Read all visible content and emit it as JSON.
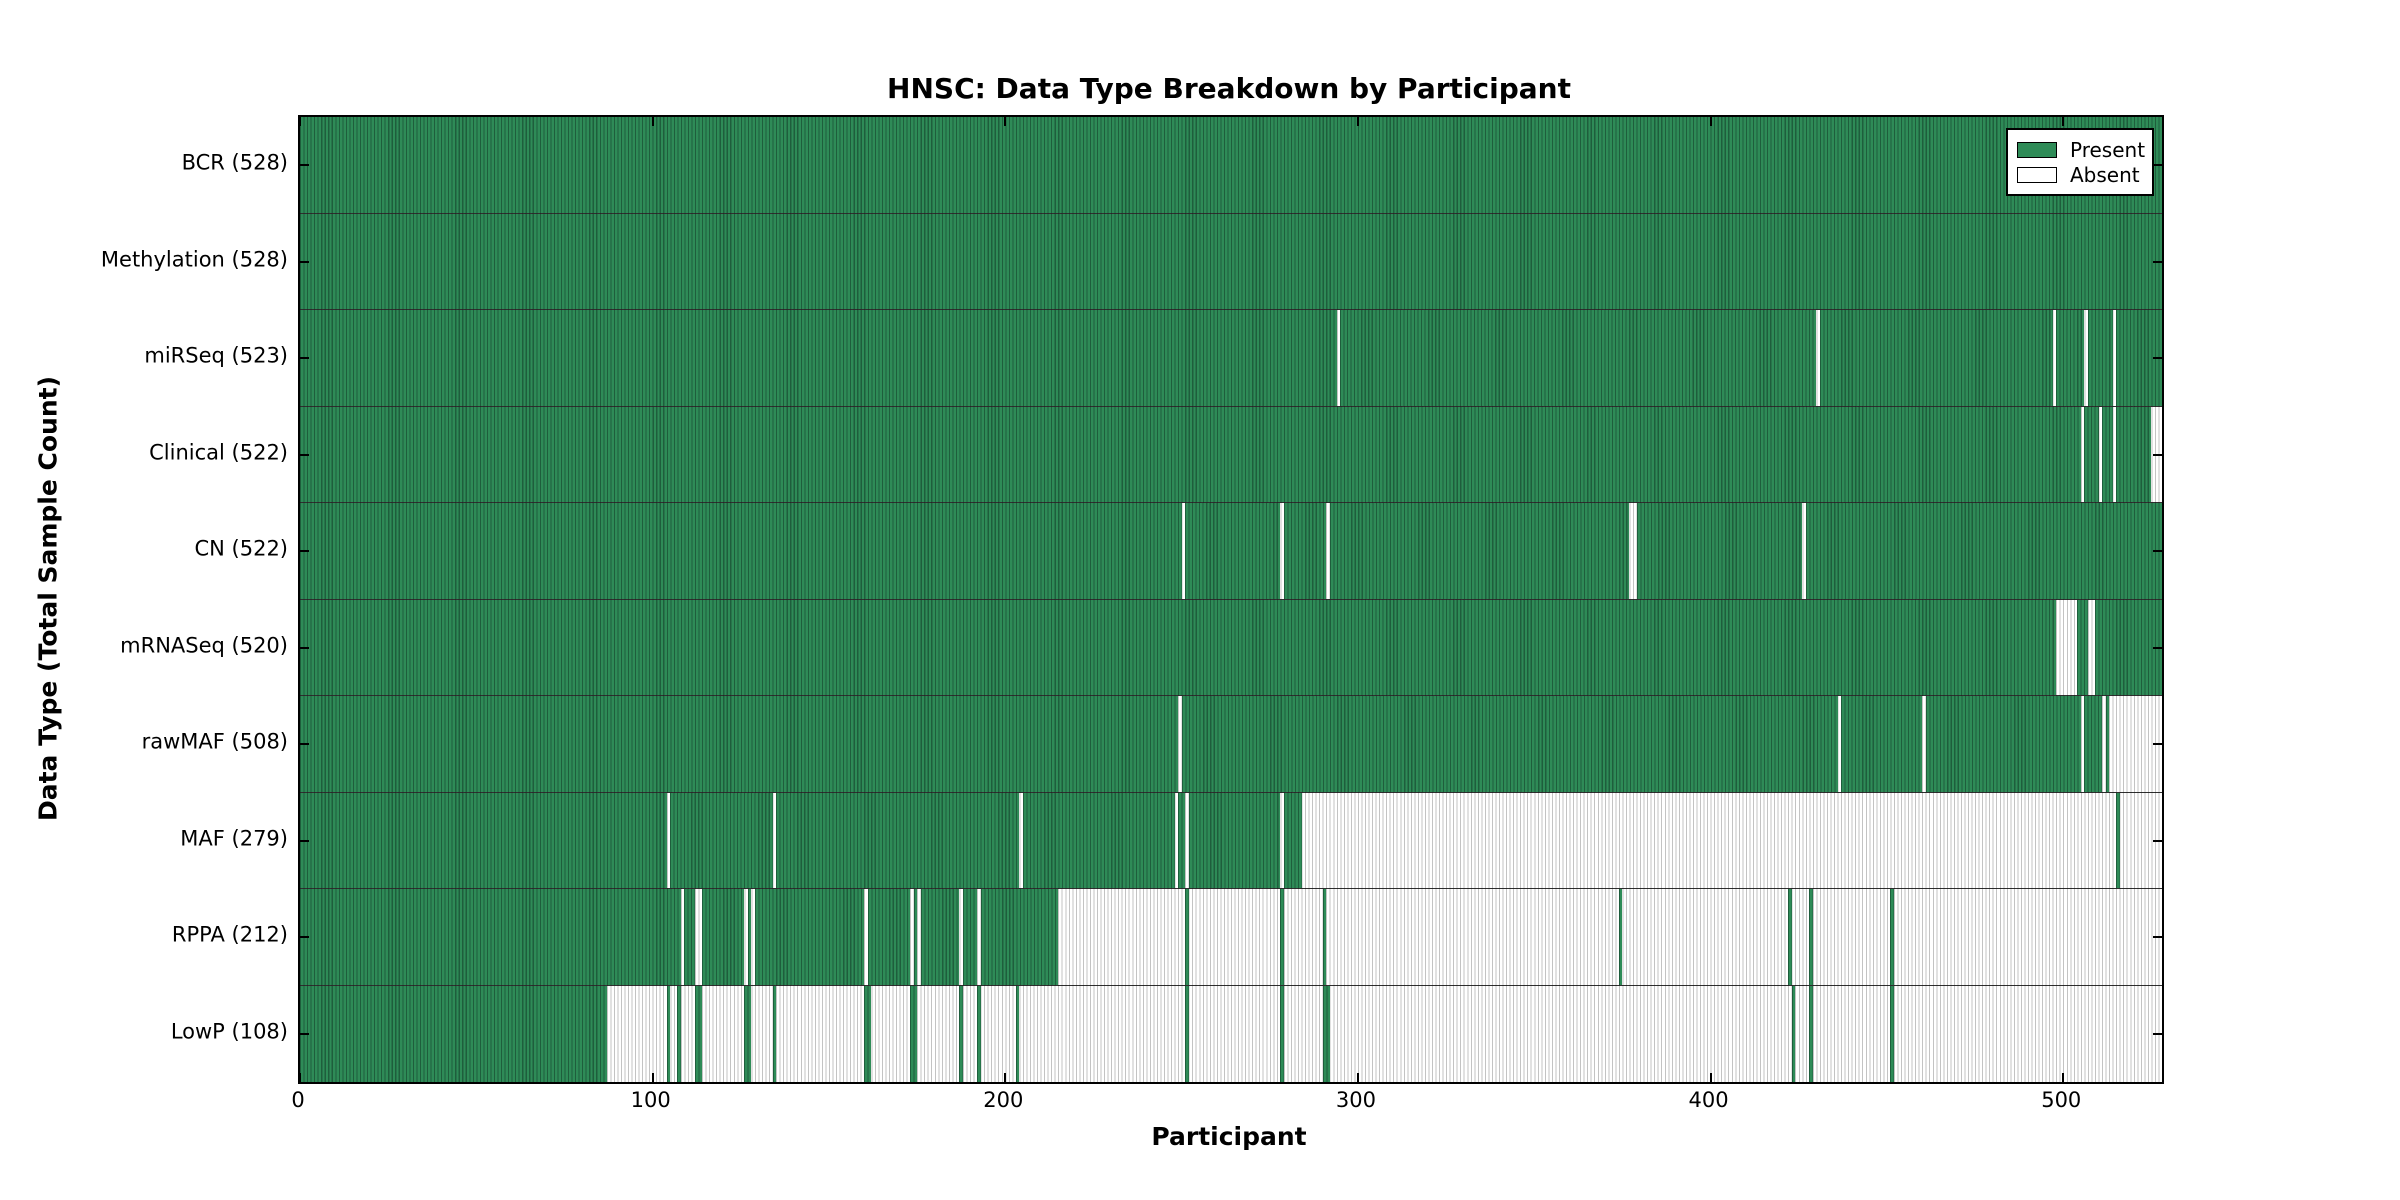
{
  "figure": {
    "title": "HNSC: Data Type Breakdown by Participant",
    "xlabel": "Participant",
    "ylabel": "Data Type (Total Sample Count)"
  },
  "legend": {
    "items": [
      {
        "label": "Present",
        "color": "#2e8b57"
      },
      {
        "label": "Absent",
        "color": "#ffffff"
      }
    ]
  },
  "chart_data": {
    "type": "heatmap",
    "title": "HNSC: Data Type Breakdown by Participant",
    "xlabel": "Participant",
    "ylabel": "Data Type (Total Sample Count)",
    "xlim": [
      0,
      528
    ],
    "x_ticks": [
      0,
      100,
      200,
      300,
      400,
      500
    ],
    "n_participants": 528,
    "grid": false,
    "legend_position": "upper right",
    "colors": {
      "present_fill": "#2e8b57",
      "present_edge": "#1e5e3c",
      "absent_fill": "#ffffff",
      "absent_edge": "#c3c3c3",
      "separator": "#0a0a0a"
    },
    "value_legend": {
      "present": "Present",
      "absent": "Absent"
    },
    "rows": [
      {
        "name": "BCR",
        "label": "BCR (528)",
        "count": 528,
        "present_ranges": [
          [
            0,
            527
          ]
        ]
      },
      {
        "name": "Methylation",
        "label": "Methylation (528)",
        "count": 528,
        "present_ranges": [
          [
            0,
            527
          ]
        ]
      },
      {
        "name": "miRSeq",
        "label": "miRSeq (523)",
        "count": 523,
        "present_ranges": [
          [
            0,
            293
          ],
          [
            295,
            429
          ],
          [
            431,
            496
          ],
          [
            498,
            505
          ],
          [
            507,
            513
          ],
          [
            515,
            527
          ]
        ]
      },
      {
        "name": "Clinical",
        "label": "Clinical (522)",
        "count": 522,
        "present_ranges": [
          [
            0,
            504
          ],
          [
            506,
            509
          ],
          [
            511,
            513
          ],
          [
            515,
            524
          ]
        ]
      },
      {
        "name": "CN",
        "label": "CN (522)",
        "count": 522,
        "present_ranges": [
          [
            0,
            249
          ],
          [
            251,
            277
          ],
          [
            279,
            290
          ],
          [
            292,
            376
          ],
          [
            379,
            425
          ],
          [
            427,
            527
          ]
        ]
      },
      {
        "name": "mRNASeq",
        "label": "mRNASeq (520)",
        "count": 520,
        "present_ranges": [
          [
            0,
            497
          ],
          [
            504,
            506
          ],
          [
            509,
            527
          ]
        ]
      },
      {
        "name": "rawMAF",
        "label": "rawMAF (508)",
        "count": 508,
        "present_ranges": [
          [
            0,
            248
          ],
          [
            250,
            435
          ],
          [
            437,
            459
          ],
          [
            461,
            504
          ],
          [
            506,
            510
          ],
          [
            512,
            512
          ]
        ]
      },
      {
        "name": "MAF",
        "label": "MAF (279)",
        "count": 279,
        "present_ranges": [
          [
            0,
            103
          ],
          [
            105,
            133
          ],
          [
            135,
            203
          ],
          [
            205,
            247
          ],
          [
            249,
            250
          ],
          [
            252,
            277
          ],
          [
            279,
            283
          ],
          [
            515,
            515
          ]
        ]
      },
      {
        "name": "RPPA",
        "label": "RPPA (212)",
        "count": 212,
        "present_ranges": [
          [
            0,
            107
          ],
          [
            109,
            111
          ],
          [
            114,
            125
          ],
          [
            127,
            127
          ],
          [
            129,
            159
          ],
          [
            161,
            172
          ],
          [
            174,
            174
          ],
          [
            176,
            186
          ],
          [
            188,
            191
          ],
          [
            193,
            214
          ],
          [
            251,
            251
          ],
          [
            278,
            278
          ],
          [
            290,
            290
          ],
          [
            374,
            374
          ],
          [
            422,
            422
          ],
          [
            428,
            428
          ],
          [
            451,
            451
          ]
        ]
      },
      {
        "name": "LowP",
        "label": "LowP (108)",
        "count": 108,
        "present_ranges": [
          [
            0,
            86
          ],
          [
            104,
            104
          ],
          [
            107,
            107
          ],
          [
            112,
            113
          ],
          [
            126,
            127
          ],
          [
            134,
            134
          ],
          [
            160,
            161
          ],
          [
            173,
            174
          ],
          [
            187,
            187
          ],
          [
            192,
            192
          ],
          [
            203,
            203
          ],
          [
            251,
            251
          ],
          [
            278,
            278
          ],
          [
            290,
            291
          ],
          [
            423,
            423
          ],
          [
            428,
            428
          ],
          [
            451,
            451
          ]
        ]
      }
    ]
  }
}
